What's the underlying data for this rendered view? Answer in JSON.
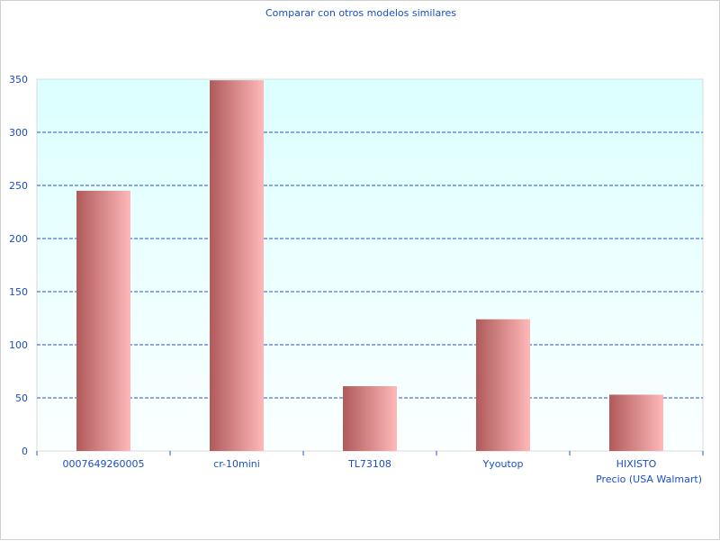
{
  "chart_data": {
    "type": "bar",
    "title": "Comparar con otros modelos similares",
    "xlabel": "Precio (USA Walmart)",
    "ylabel": "",
    "categories": [
      "0007649260005",
      "cr-10mini",
      "TL73108",
      "Yyoutop",
      "HIXISTO"
    ],
    "values": [
      245,
      349,
      61,
      124,
      53
    ],
    "ylim": [
      0,
      350
    ],
    "yticks": [
      0,
      50,
      100,
      150,
      200,
      250,
      300,
      350
    ],
    "grid": true,
    "colors": {
      "bar_dark": "#b05a5a",
      "bar_light": "#ffb8b8",
      "grid": "#2255cc",
      "text": "#1a4fc4",
      "bg_top": "#dcffff",
      "bg_bottom": "#fbffff"
    }
  }
}
